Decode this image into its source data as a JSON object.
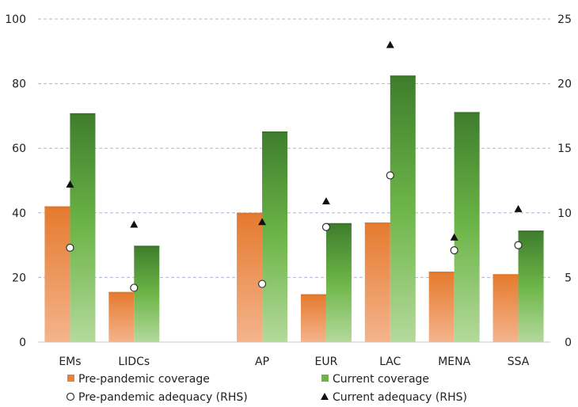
{
  "chart_data": {
    "type": "bar",
    "categories": [
      "EMs",
      "LIDCs",
      "",
      "AP",
      "EUR",
      "LAC",
      "MENA",
      "SSA"
    ],
    "series": [
      {
        "name": "Pre-pandemic coverage",
        "kind": "bar",
        "axis": "left",
        "color": "#e8823a",
        "values": [
          42,
          15.5,
          null,
          40,
          14.8,
          37,
          21.8,
          21
        ]
      },
      {
        "name": "Current coverage",
        "kind": "bar",
        "axis": "left",
        "color": "#6fb04a",
        "values": [
          70.8,
          29.8,
          null,
          65.2,
          36.8,
          82.5,
          71.2,
          34.5
        ]
      },
      {
        "name": "Pre-pandemic adequacy (RHS)",
        "kind": "marker",
        "marker": "open-circle",
        "axis": "right",
        "values": [
          7.3,
          4.2,
          null,
          4.5,
          8.9,
          12.9,
          7.1,
          7.5
        ]
      },
      {
        "name": "Current adequacy (RHS)",
        "kind": "marker",
        "marker": "filled-triangle",
        "axis": "right",
        "values": [
          12.2,
          9.1,
          null,
          9.3,
          10.9,
          23.0,
          8.1,
          10.3
        ]
      }
    ],
    "y_left": {
      "min": 0,
      "max": 100,
      "ticks": [
        0,
        20,
        40,
        60,
        80,
        100
      ]
    },
    "y_right": {
      "min": 0,
      "max": 25,
      "ticks": [
        0,
        5,
        10,
        15,
        20,
        25
      ]
    },
    "grid": true,
    "legend_position": "bottom"
  }
}
